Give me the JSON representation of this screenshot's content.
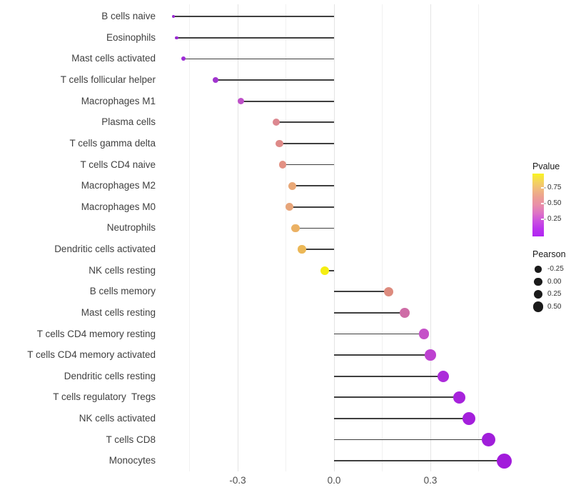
{
  "chart_data": {
    "type": "scatter",
    "subtype": "lollipop",
    "title": "",
    "xlabel": "",
    "ylabel": "",
    "x_tick_labels": [
      "-0.3",
      "0.0",
      "0.3"
    ],
    "x_tick_values": [
      -0.3,
      0.0,
      0.3
    ],
    "x_minor_grid_values": [
      -0.45,
      -0.15,
      0.15,
      0.45
    ],
    "xlim": [
      -0.465,
      0.605
    ],
    "grid": "vertical-only",
    "legend_position": "right",
    "encoding": {
      "x": "Pearson correlation",
      "dot_color": "Pvalue",
      "dot_size": "Pearson"
    },
    "rows": [
      {
        "label": "B cells naive",
        "pearson": -0.5,
        "pvalue_approx": 0.06,
        "dot_color": "#9929D2",
        "dot_radius": 2.3
      },
      {
        "label": "Eosinophils",
        "pearson": -0.49,
        "pvalue_approx": 0.06,
        "dot_color": "#9929D2",
        "dot_radius": 2.3
      },
      {
        "label": "Mast cells activated",
        "pearson": -0.47,
        "pvalue_approx": 0.07,
        "dot_color": "#9D2BD6",
        "dot_radius": 3.0
      },
      {
        "label": "T cells follicular helper",
        "pearson": -0.37,
        "pvalue_approx": 0.1,
        "dot_color": "#A135CF",
        "dot_radius": 4.0
      },
      {
        "label": "Macrophages M1",
        "pearson": -0.29,
        "pvalue_approx": 0.28,
        "dot_color": "#BE50C8",
        "dot_radius": 4.5
      },
      {
        "label": "Plasma cells",
        "pearson": -0.18,
        "pvalue_approx": 0.48,
        "dot_color": "#DC8890",
        "dot_radius": 5.0
      },
      {
        "label": "T cells gamma delta",
        "pearson": -0.17,
        "pvalue_approx": 0.5,
        "dot_color": "#DE8A88",
        "dot_radius": 5.1
      },
      {
        "label": "T cells CD4 naive",
        "pearson": -0.16,
        "pvalue_approx": 0.52,
        "dot_color": "#E39184",
        "dot_radius": 5.2
      },
      {
        "label": "Macrophages M2",
        "pearson": -0.13,
        "pvalue_approx": 0.6,
        "dot_color": "#E9A877",
        "dot_radius": 5.5
      },
      {
        "label": "Macrophages M0",
        "pearson": -0.14,
        "pvalue_approx": 0.58,
        "dot_color": "#E7A57A",
        "dot_radius": 5.5
      },
      {
        "label": "Neutrophils",
        "pearson": -0.12,
        "pvalue_approx": 0.65,
        "dot_color": "#EBB164",
        "dot_radius": 5.6
      },
      {
        "label": "Dendritic cells activated",
        "pearson": -0.1,
        "pvalue_approx": 0.68,
        "dot_color": "#ECB857",
        "dot_radius": 5.7
      },
      {
        "label": "NK cells resting",
        "pearson": -0.03,
        "pvalue_approx": 0.93,
        "dot_color": "#F5EE12",
        "dot_radius": 6.0
      },
      {
        "label": "B cells memory",
        "pearson": 0.17,
        "pvalue_approx": 0.5,
        "dot_color": "#DD8B7E",
        "dot_radius": 6.6
      },
      {
        "label": "Mast cells resting",
        "pearson": 0.22,
        "pvalue_approx": 0.35,
        "dot_color": "#CE6CA6",
        "dot_radius": 7.0
      },
      {
        "label": "T cells CD4 memory resting",
        "pearson": 0.28,
        "pvalue_approx": 0.27,
        "dot_color": "#C551C8",
        "dot_radius": 7.4
      },
      {
        "label": "T cells CD4 memory activated",
        "pearson": 0.3,
        "pvalue_approx": 0.22,
        "dot_color": "#BD41D0",
        "dot_radius": 7.7
      },
      {
        "label": "Dendritic cells resting",
        "pearson": 0.34,
        "pvalue_approx": 0.14,
        "dot_color": "#AC2CDA",
        "dot_radius": 8.0
      },
      {
        "label": "T cells regulatory  Tregs",
        "pearson": 0.39,
        "pvalue_approx": 0.11,
        "dot_color": "#A723DC",
        "dot_radius": 8.4
      },
      {
        "label": "NK cells activated",
        "pearson": 0.42,
        "pvalue_approx": 0.09,
        "dot_color": "#A41FDC",
        "dot_radius": 9.0
      },
      {
        "label": "T cells CD8",
        "pearson": 0.48,
        "pvalue_approx": 0.07,
        "dot_color": "#A01EDA",
        "dot_radius": 9.5
      },
      {
        "label": "Monocytes",
        "pearson": 0.53,
        "pvalue_approx": 0.05,
        "dot_color": "#A21BDB",
        "dot_radius": 10.5
      }
    ]
  },
  "legends": {
    "pvalue": {
      "title": "Pvalue",
      "tick_labels": [
        "0.75",
        "0.50",
        "0.25"
      ],
      "tick_values": [
        0.75,
        0.5,
        0.25
      ],
      "bar_range": [
        0.98,
        -0.02
      ],
      "gradient_stops_top_to_bottom": [
        "#F9F320",
        "#F4D45C",
        "#F0B97E",
        "#ECA093",
        "#E98FA8",
        "#DE74C4",
        "#CC52DE",
        "#BB35ED",
        "#B126F2"
      ]
    },
    "pearson": {
      "title": "Pearson",
      "dot_color": "#1A1A1A",
      "items": [
        {
          "label": "-0.25",
          "radius": 4.6
        },
        {
          "label": "0.00",
          "radius": 5.6
        },
        {
          "label": "0.25",
          "radius": 6.4
        },
        {
          "label": "0.50",
          "radius": 7.2
        }
      ]
    }
  },
  "colors": {
    "background": "#ffffff",
    "stem": "#3f3f3f",
    "grid_major": "#e4e4e4",
    "grid_minor": "#f1f1f1",
    "axis_text": "#4d4d4d"
  }
}
